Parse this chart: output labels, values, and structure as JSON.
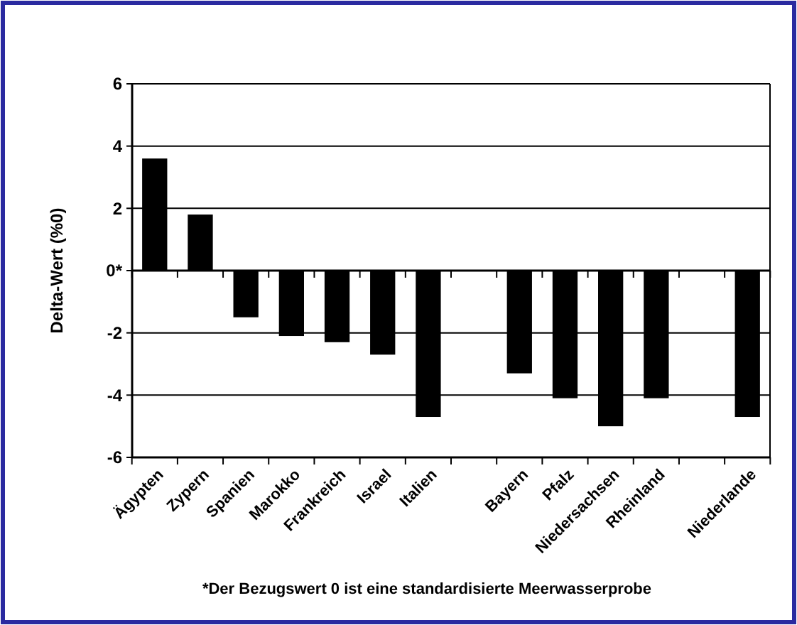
{
  "chart_data": {
    "type": "bar",
    "categories": [
      "Ägypten",
      "Zypern",
      "Spanien",
      "Marokko",
      "Frankreich",
      "Israel",
      "Italien",
      null,
      "Bayern",
      "Pfalz",
      "Niedersachsen",
      "Rheinland",
      null,
      "Niederlande"
    ],
    "values": [
      3.6,
      1.8,
      -1.5,
      -2.1,
      -2.3,
      -2.7,
      -4.7,
      null,
      -3.3,
      -4.1,
      -5.0,
      -4.1,
      null,
      -4.7
    ],
    "color": "#000000",
    "ylabel": "Delta-Wert (%0)",
    "ylim": [
      -6,
      6
    ],
    "yticks": [
      -6,
      -4,
      -2,
      {
        "value": 0,
        "label": "0*"
      },
      2,
      4,
      6
    ],
    "grid": "y",
    "annotations": [
      "*Der Bezugswert 0 ist eine standardisierte Meerwasserprobe"
    ]
  }
}
